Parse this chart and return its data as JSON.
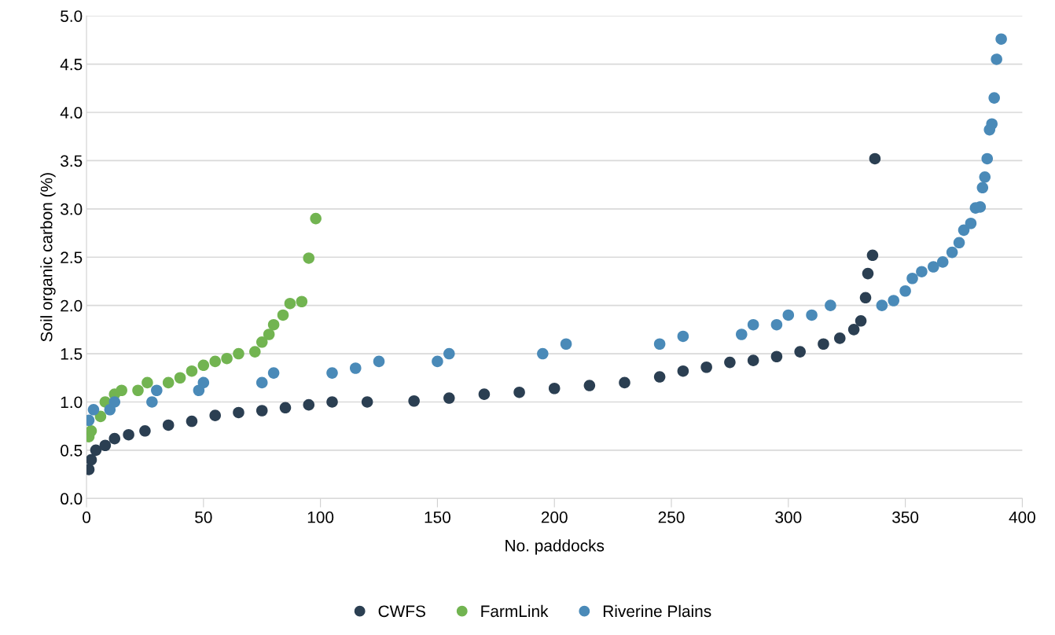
{
  "chart_data": {
    "type": "scatter",
    "xlabel": "No. paddocks",
    "ylabel": "Soil organic carbon (%)",
    "xlim": [
      0,
      400
    ],
    "xticks": [
      0,
      50,
      100,
      150,
      200,
      250,
      300,
      350,
      400
    ],
    "ylim": [
      0,
      5
    ],
    "yticks": [
      {
        "value": 0,
        "label": "0.0"
      },
      {
        "value": 0.5,
        "label": "0.5"
      },
      {
        "value": 1,
        "label": "1.0"
      },
      {
        "value": 1.5,
        "label": "1.5"
      },
      {
        "value": 2,
        "label": "2.0"
      },
      {
        "value": 2.5,
        "label": "2.5"
      },
      {
        "value": 3,
        "label": "3.0"
      },
      {
        "value": 3.5,
        "label": "3.5"
      },
      {
        "value": 4,
        "label": "4.0"
      },
      {
        "value": 4.5,
        "label": "4.5"
      },
      {
        "value": 5,
        "label": "5.0"
      }
    ],
    "grid": "y",
    "legend": "bottom",
    "marker": "circle",
    "series": [
      {
        "name": "CWFS",
        "color": "#2b3f52",
        "x": [
          1,
          2,
          4,
          8,
          12,
          18,
          25,
          35,
          45,
          55,
          65,
          75,
          85,
          95,
          105,
          120,
          140,
          155,
          170,
          185,
          200,
          215,
          230,
          245,
          255,
          265,
          275,
          285,
          295,
          305,
          315,
          322,
          328,
          331,
          333,
          334,
          336,
          337
        ],
        "values": [
          0.3,
          0.4,
          0.5,
          0.55,
          0.62,
          0.66,
          0.7,
          0.76,
          0.8,
          0.86,
          0.89,
          0.91,
          0.94,
          0.97,
          1.0,
          1.0,
          1.01,
          1.04,
          1.08,
          1.1,
          1.14,
          1.17,
          1.2,
          1.26,
          1.32,
          1.36,
          1.41,
          1.43,
          1.47,
          1.52,
          1.6,
          1.66,
          1.75,
          1.84,
          2.08,
          2.33,
          2.52,
          3.52
        ]
      },
      {
        "name": "FarmLink",
        "color": "#72b451",
        "x": [
          1,
          2,
          6,
          8,
          12,
          15,
          22,
          26,
          35,
          40,
          45,
          50,
          55,
          60,
          65,
          72,
          75,
          78,
          80,
          84,
          87,
          92,
          95,
          98
        ],
        "values": [
          0.64,
          0.7,
          0.85,
          1.0,
          1.08,
          1.12,
          1.12,
          1.2,
          1.2,
          1.25,
          1.32,
          1.38,
          1.42,
          1.45,
          1.5,
          1.52,
          1.62,
          1.7,
          1.8,
          1.9,
          2.02,
          2.04,
          2.49,
          2.9
        ]
      },
      {
        "name": "Riverine Plains",
        "color": "#4a8ab8",
        "x": [
          1,
          3,
          10,
          12,
          28,
          30,
          48,
          50,
          75,
          80,
          105,
          115,
          125,
          150,
          155,
          195,
          205,
          245,
          255,
          280,
          285,
          295,
          300,
          310,
          318,
          340,
          345,
          350,
          353,
          357,
          362,
          366,
          370,
          373,
          375,
          378,
          380,
          382,
          383,
          384,
          385,
          386,
          387,
          388,
          389,
          391
        ],
        "values": [
          0.81,
          0.92,
          0.92,
          1.0,
          1.0,
          1.12,
          1.12,
          1.2,
          1.2,
          1.3,
          1.3,
          1.35,
          1.42,
          1.42,
          1.5,
          1.5,
          1.6,
          1.6,
          1.68,
          1.7,
          1.8,
          1.8,
          1.9,
          1.9,
          2.0,
          2.0,
          2.05,
          2.15,
          2.28,
          2.35,
          2.4,
          2.45,
          2.55,
          2.65,
          2.78,
          2.85,
          3.01,
          3.02,
          3.22,
          3.33,
          3.52,
          3.82,
          3.88,
          4.15,
          4.55,
          4.76
        ]
      }
    ]
  }
}
